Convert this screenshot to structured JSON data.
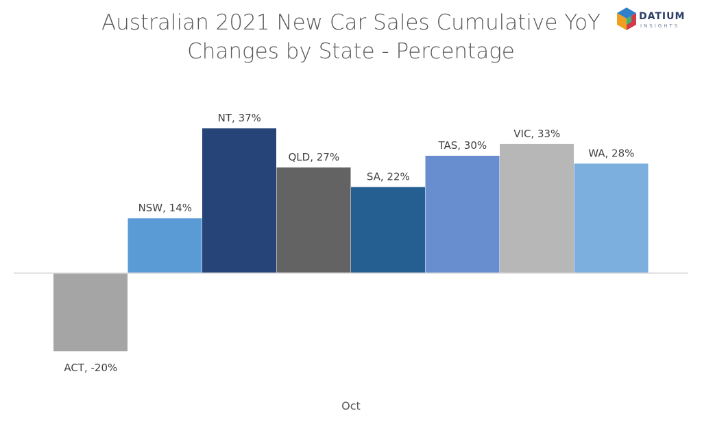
{
  "title": {
    "line1": "Australian 2021  New Car Sales Cumulative YoY",
    "line2": "Changes by State - Percentage"
  },
  "logo": {
    "name": "DATIUM",
    "sub": "INSIGHTS",
    "icon": "datium-cube-logo"
  },
  "chart_data": {
    "type": "bar",
    "title": "Australian 2021  New Car Sales Cumulative YoY Changes by State - Percentage",
    "categories": [
      "Oct"
    ],
    "xlabel": "",
    "ylabel": "",
    "ylim": [
      -25,
      45
    ],
    "grid": false,
    "legend": "none",
    "series": [
      {
        "name": "ACT",
        "value": -20,
        "label": "ACT, -20%",
        "color": "#a5a5a5"
      },
      {
        "name": "NSW",
        "value": 14,
        "label": "NSW, 14%",
        "color": "#5b9bd5"
      },
      {
        "name": "NT",
        "value": 37,
        "label": "NT, 37%",
        "color": "#264478"
      },
      {
        "name": "QLD",
        "value": 27,
        "label": "QLD, 27%",
        "color": "#636363"
      },
      {
        "name": "SA",
        "value": 22,
        "label": "SA, 22%",
        "color": "#255e91"
      },
      {
        "name": "TAS",
        "value": 30,
        "label": "TAS, 30%",
        "color": "#698ed0"
      },
      {
        "name": "VIC",
        "value": 33,
        "label": "VIC, 33%",
        "color": "#b7b7b7"
      },
      {
        "name": "WA",
        "value": 28,
        "label": "WA, 28%",
        "color": "#7cafdd"
      }
    ]
  }
}
